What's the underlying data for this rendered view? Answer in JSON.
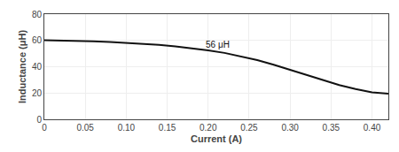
{
  "chart_data": {
    "type": "line",
    "xlabel": "Current (A)",
    "ylabel": "Inductance (μH)",
    "x": [
      0.0,
      0.02,
      0.04,
      0.06,
      0.08,
      0.1,
      0.12,
      0.14,
      0.16,
      0.18,
      0.2,
      0.22,
      0.24,
      0.26,
      0.28,
      0.3,
      0.32,
      0.34,
      0.36,
      0.38,
      0.4,
      0.42
    ],
    "values": [
      60.2,
      60.0,
      59.7,
      59.3,
      58.8,
      58.2,
      57.5,
      56.6,
      55.5,
      54.1,
      52.5,
      50.5,
      48.0,
      45.0,
      41.5,
      37.5,
      33.5,
      29.5,
      26.0,
      23.0,
      20.5,
      19.5
    ],
    "color": "#111111",
    "xlim": [
      0,
      0.42
    ],
    "xticks": [
      0,
      0.05,
      {
        "value": 0.1,
        "label": "0.10"
      },
      0.15,
      {
        "value": 0.2,
        "label": "0.20"
      },
      0.25,
      {
        "value": 0.3,
        "label": "0.30"
      },
      0.35,
      {
        "value": 0.4,
        "label": "0.40"
      }
    ],
    "ylim": [
      0,
      80
    ],
    "yticks": [
      0,
      20,
      40,
      60,
      80
    ],
    "annotations": [
      {
        "text": "56 μH",
        "x": 0.195,
        "y": 51.5
      }
    ],
    "grid": true
  }
}
